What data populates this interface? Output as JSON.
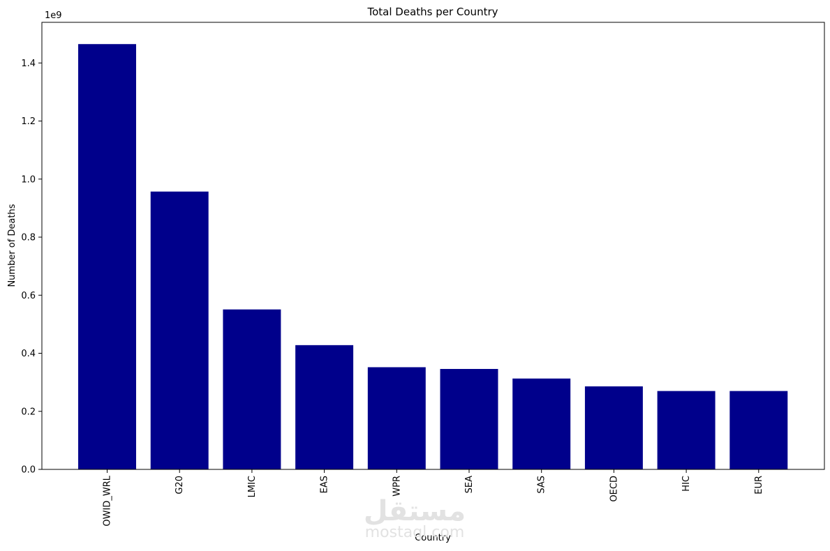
{
  "chart_data": {
    "type": "bar",
    "title": "Total Deaths per Country",
    "xlabel": "Country",
    "ylabel": "Number of Deaths",
    "offset_label": "1e9",
    "categories": [
      "OWID_WRL",
      "G20",
      "LMIC",
      "EAS",
      "WPR",
      "SEA",
      "SAS",
      "OECD",
      "HIC",
      "EUR"
    ],
    "values": [
      1465000000,
      957000000,
      551000000,
      428000000,
      352000000,
      346000000,
      313000000,
      286000000,
      270000000,
      270000000
    ],
    "bar_color": "#00008b",
    "ylim": [
      0,
      1540000000
    ],
    "yticks": [
      0,
      200000000,
      400000000,
      600000000,
      800000000,
      1000000000,
      1200000000,
      1400000000
    ],
    "ytick_labels": [
      "0.0",
      "0.2",
      "0.4",
      "0.6",
      "0.8",
      "1.0",
      "1.2",
      "1.4"
    ],
    "grid": false,
    "legend": "none"
  },
  "watermark": {
    "arabic": "مستقل",
    "latin": "mostaql.com"
  }
}
